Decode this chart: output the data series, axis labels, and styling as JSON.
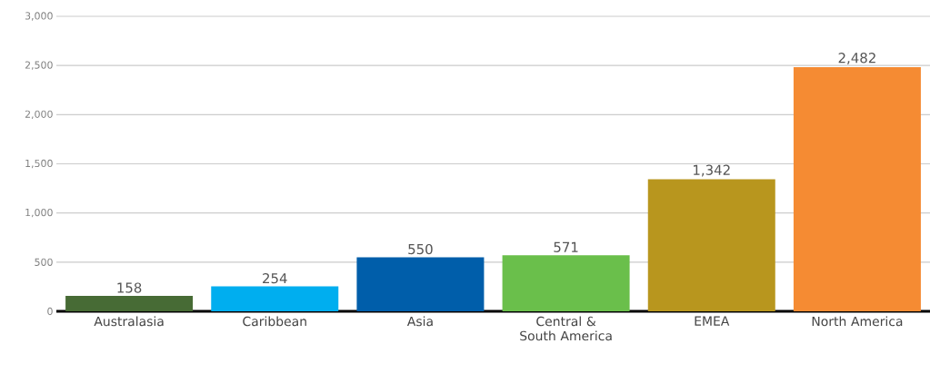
{
  "chart_data": {
    "type": "bar",
    "categories": [
      "Australasia",
      "Caribbean",
      "Asia",
      "Central & South America",
      "EMEA",
      "North America"
    ],
    "values": [
      158,
      254,
      550,
      571,
      1342,
      2482
    ],
    "value_labels": [
      "158",
      "254",
      "550",
      "571",
      "1,342",
      "2,482"
    ],
    "colors": [
      "#476b35",
      "#00aeef",
      "#005eaa",
      "#6abf4b",
      "#b8961e",
      "#f58b33"
    ],
    "ylim": [
      0,
      3000
    ],
    "yticks": [
      0,
      500,
      {
        "value": 1000,
        "label": "1,000"
      },
      {
        "value": 1500,
        "label": "1,500"
      },
      {
        "value": 2000,
        "label": "2,000"
      },
      {
        "value": 2500,
        "label": "2,500"
      },
      {
        "value": 3000,
        "label": "3,000"
      }
    ],
    "grid": "y"
  }
}
